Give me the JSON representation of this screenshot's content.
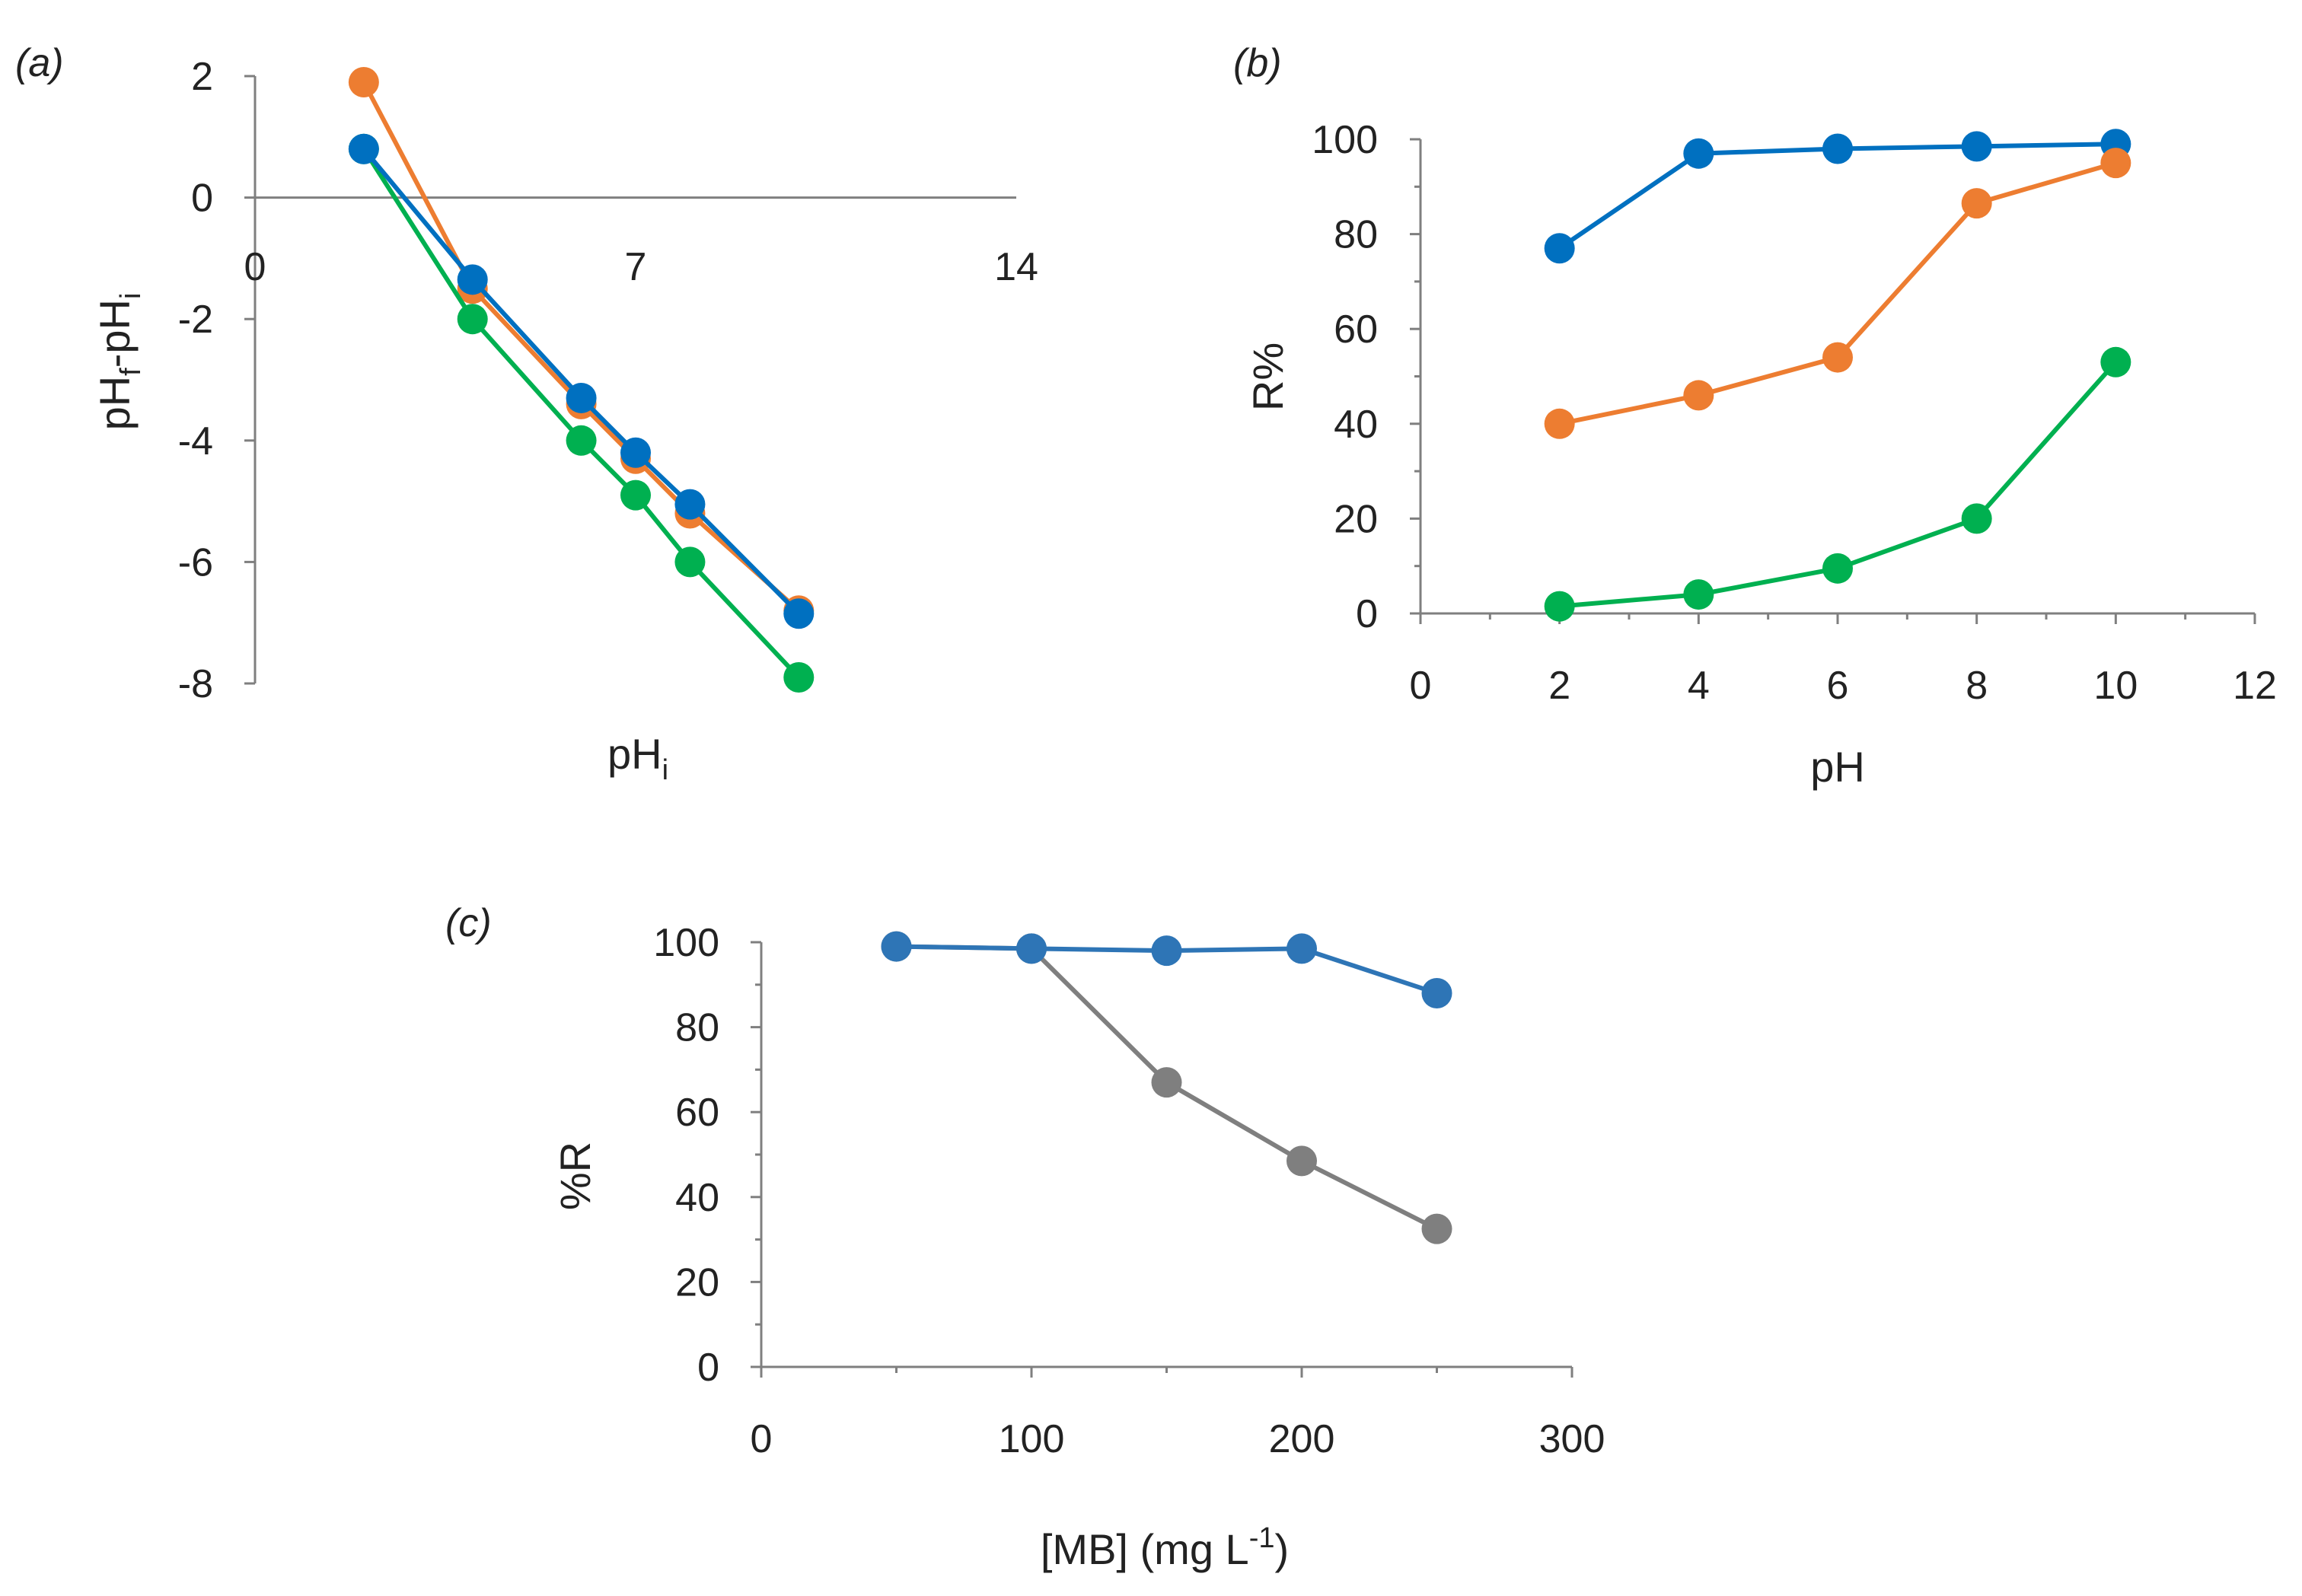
{
  "chart_data": [
    {
      "id": "a",
      "type": "line",
      "panel_label": "(a)",
      "xlabel": "pH",
      "xlabel_sub": "i",
      "ylabel_parts": [
        "pH",
        "f",
        "-pH",
        "i"
      ],
      "xlim": [
        0,
        14
      ],
      "ylim": [
        -8,
        2
      ],
      "xticks": [
        0,
        7,
        14
      ],
      "yticks": [
        2,
        0,
        -2,
        -4,
        -6,
        -8
      ],
      "series": [
        {
          "name": "orange",
          "color": "#ED7D31",
          "x": [
            2,
            4,
            6,
            7,
            8,
            10
          ],
          "y": [
            1.9,
            -1.5,
            -3.4,
            -4.3,
            -5.2,
            -6.8
          ]
        },
        {
          "name": "green",
          "color": "#00B050",
          "x": [
            2,
            4,
            6,
            7,
            8,
            10
          ],
          "y": [
            0.8,
            -2.0,
            -4.0,
            -4.9,
            -6.0,
            -7.9
          ]
        },
        {
          "name": "blue",
          "color": "#0070C0",
          "x": [
            2,
            4,
            6,
            7,
            8,
            10
          ],
          "y": [
            0.8,
            -1.35,
            -3.3,
            -4.2,
            -5.05,
            -6.85
          ]
        }
      ]
    },
    {
      "id": "b",
      "type": "line",
      "panel_label": "(b)",
      "xlabel": "pH",
      "ylabel": "R%",
      "xlim": [
        0,
        12
      ],
      "ylim": [
        0,
        100
      ],
      "xticks": [
        0,
        2,
        4,
        6,
        8,
        10,
        12
      ],
      "yticks": [
        0,
        20,
        40,
        60,
        80,
        100
      ],
      "series": [
        {
          "name": "blue",
          "color": "#0070C0",
          "x": [
            2,
            4,
            6,
            8,
            10
          ],
          "y": [
            77,
            97,
            98,
            98.5,
            99
          ]
        },
        {
          "name": "orange",
          "color": "#ED7D31",
          "x": [
            2,
            4,
            6,
            8,
            10
          ],
          "y": [
            40,
            46,
            54,
            86.5,
            95
          ]
        },
        {
          "name": "green",
          "color": "#00B050",
          "x": [
            2,
            4,
            6,
            8,
            10
          ],
          "y": [
            1.5,
            4,
            9.5,
            20,
            53
          ]
        }
      ]
    },
    {
      "id": "c",
      "type": "line",
      "panel_label": "(c)",
      "xlabel_parts": [
        "[MB] (mg L",
        "-1",
        ")"
      ],
      "ylabel": "%R",
      "xlim": [
        0,
        300
      ],
      "ylim": [
        0,
        100
      ],
      "xticks": [
        0,
        100,
        200,
        300
      ],
      "yticks": [
        0,
        20,
        40,
        60,
        80,
        100
      ],
      "series": [
        {
          "name": "gray",
          "color": "#7F7F7F",
          "x": [
            50,
            100,
            150,
            200,
            250
          ],
          "y": [
            99,
            98.5,
            67,
            48.5,
            32.5
          ]
        },
        {
          "name": "blue",
          "color": "#2E75B6",
          "x": [
            50,
            100,
            150,
            200,
            250
          ],
          "y": [
            99,
            98.5,
            98,
            98.5,
            88
          ]
        }
      ]
    }
  ]
}
